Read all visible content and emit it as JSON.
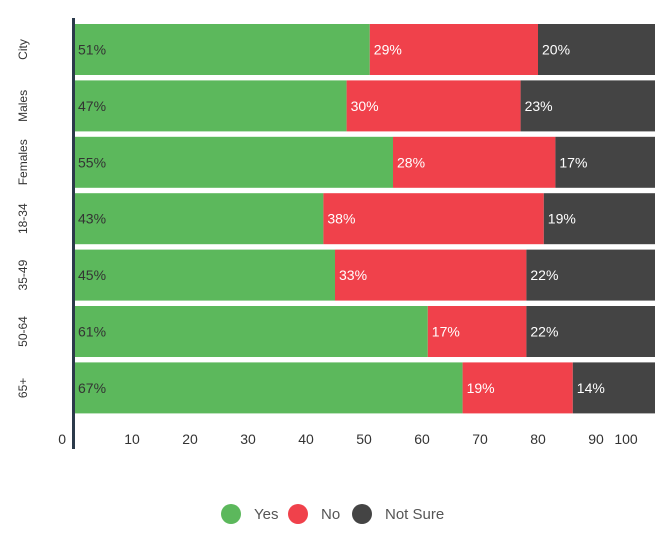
{
  "chart_data": {
    "type": "bar",
    "orientation": "horizontal",
    "stacked": true,
    "title": "",
    "xlabel": "",
    "ylabel": "",
    "xlim": [
      0,
      100
    ],
    "x_ticks": [
      "0",
      "10",
      "20",
      "30",
      "40",
      "50",
      "60",
      "70",
      "80",
      "90",
      "100"
    ],
    "categories": [
      "City",
      "Males",
      "Females",
      "18-34",
      "35-49",
      "50-64",
      "65+"
    ],
    "series": [
      {
        "name": "Yes",
        "color": "#5cb85c",
        "values": [
          51,
          47,
          55,
          43,
          45,
          61,
          67
        ],
        "labels": [
          "51%",
          "47%",
          "55%",
          "43%",
          "45%",
          "61%",
          "67%"
        ]
      },
      {
        "name": "No",
        "color": "#f0414b",
        "values": [
          29,
          30,
          28,
          38,
          33,
          17,
          19
        ],
        "labels": [
          "29%",
          "30%",
          "28%",
          "38%",
          "33%",
          "17%",
          "19%"
        ]
      },
      {
        "name": "Not Sure",
        "color": "#444444",
        "values": [
          20,
          23,
          17,
          19,
          22,
          22,
          14
        ],
        "labels": [
          "20%",
          "23%",
          "17%",
          "19%",
          "22%",
          "22%",
          "14%"
        ]
      }
    ],
    "legend_position": "bottom-center",
    "grid": false
  }
}
